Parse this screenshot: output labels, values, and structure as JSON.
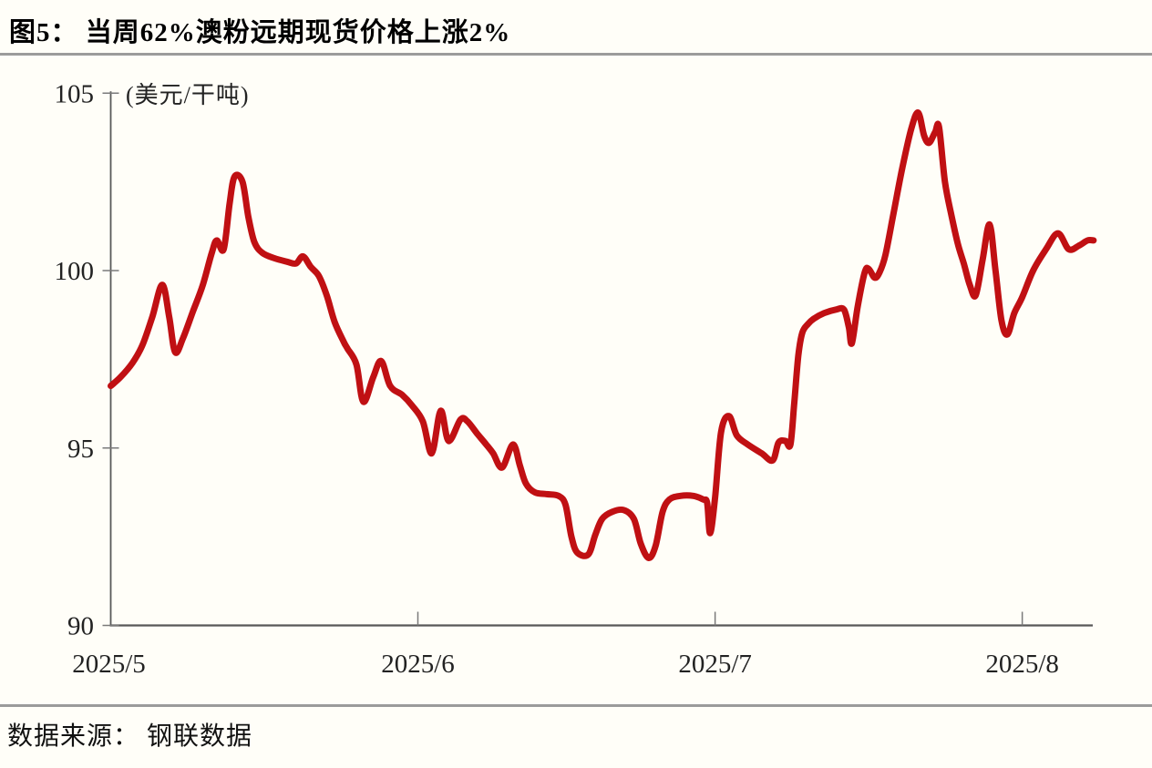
{
  "header": {
    "title": "图5： 当周62%澳粉远期现货价格上涨2%"
  },
  "footer": {
    "source": "数据来源： 钢联数据"
  },
  "chart_data": {
    "type": "line",
    "title": "当周62%澳粉远期现货价格上涨2%",
    "unit_label": "(美元/干吨)",
    "x_axis": {
      "tick_labels": [
        "2025/5",
        "2025/6",
        "2025/7",
        "2025/8"
      ],
      "tick_days": [
        0,
        31,
        61,
        92
      ],
      "x_unit": "days since 2025/5/1",
      "range_days": [
        0,
        99.2
      ]
    },
    "y_axis": {
      "ticks": [
        90,
        95,
        100,
        105
      ],
      "min": 90,
      "max": 105
    },
    "legend": "none",
    "grid": "off",
    "series": [
      {
        "name": "62%澳粉远期现货价格",
        "color": "#c01013",
        "points": [
          [
            0,
            96.75
          ],
          [
            1,
            97.0
          ],
          [
            2.2,
            97.4
          ],
          [
            3.2,
            97.9
          ],
          [
            4.2,
            98.7
          ],
          [
            5.2,
            99.6
          ],
          [
            5.9,
            98.7
          ],
          [
            6.5,
            97.7
          ],
          [
            7.3,
            98.1
          ],
          [
            8.3,
            98.85
          ],
          [
            9.3,
            99.6
          ],
          [
            10.2,
            100.5
          ],
          [
            10.7,
            100.85
          ],
          [
            11.4,
            100.6
          ],
          [
            12.0,
            101.9
          ],
          [
            12.5,
            102.65
          ],
          [
            13.3,
            102.5
          ],
          [
            13.9,
            101.5
          ],
          [
            14.5,
            100.8
          ],
          [
            15.3,
            100.5
          ],
          [
            16.5,
            100.35
          ],
          [
            17.8,
            100.25
          ],
          [
            18.7,
            100.2
          ],
          [
            19.4,
            100.4
          ],
          [
            20.2,
            100.1
          ],
          [
            21.0,
            99.85
          ],
          [
            21.8,
            99.3
          ],
          [
            22.6,
            98.55
          ],
          [
            23.5,
            98.0
          ],
          [
            23.9,
            97.8
          ],
          [
            24.8,
            97.35
          ],
          [
            25.5,
            96.3
          ],
          [
            26.5,
            97.0
          ],
          [
            27.3,
            97.45
          ],
          [
            28.2,
            96.75
          ],
          [
            29.4,
            96.5
          ],
          [
            30.4,
            96.2
          ],
          [
            31.5,
            95.75
          ],
          [
            32.4,
            94.85
          ],
          [
            33.3,
            96.05
          ],
          [
            34.1,
            95.2
          ],
          [
            35.3,
            95.8
          ],
          [
            36.0,
            95.75
          ],
          [
            37.0,
            95.4
          ],
          [
            37.9,
            95.1
          ],
          [
            38.6,
            94.85
          ],
          [
            39.5,
            94.45
          ],
          [
            40.6,
            95.1
          ],
          [
            41.3,
            94.5
          ],
          [
            41.9,
            94.0
          ],
          [
            42.8,
            93.75
          ],
          [
            44.0,
            93.7
          ],
          [
            45.2,
            93.65
          ],
          [
            45.9,
            93.4
          ],
          [
            46.5,
            92.5
          ],
          [
            47.1,
            92.05
          ],
          [
            48.2,
            92.0
          ],
          [
            48.9,
            92.55
          ],
          [
            49.6,
            93.0
          ],
          [
            50.6,
            93.2
          ],
          [
            51.8,
            93.25
          ],
          [
            52.8,
            93.0
          ],
          [
            53.5,
            92.3
          ],
          [
            54.3,
            91.9
          ],
          [
            55.0,
            92.25
          ],
          [
            55.7,
            93.2
          ],
          [
            56.4,
            93.55
          ],
          [
            57.5,
            93.65
          ],
          [
            58.8,
            93.65
          ],
          [
            59.8,
            93.55
          ],
          [
            60.2,
            93.45
          ],
          [
            60.5,
            92.6
          ],
          [
            61.0,
            93.6
          ],
          [
            61.6,
            95.45
          ],
          [
            62.4,
            95.9
          ],
          [
            63.2,
            95.35
          ],
          [
            64.3,
            95.1
          ],
          [
            65.7,
            94.85
          ],
          [
            66.8,
            94.65
          ],
          [
            67.4,
            95.15
          ],
          [
            68.1,
            95.2
          ],
          [
            68.6,
            95.1
          ],
          [
            69.0,
            96.3
          ],
          [
            69.4,
            97.6
          ],
          [
            69.8,
            98.25
          ],
          [
            70.4,
            98.5
          ],
          [
            71.0,
            98.65
          ],
          [
            72.0,
            98.8
          ],
          [
            73.2,
            98.9
          ],
          [
            74.0,
            98.9
          ],
          [
            74.5,
            98.4
          ],
          [
            74.8,
            97.95
          ],
          [
            75.4,
            99.0
          ],
          [
            76.1,
            99.95
          ],
          [
            76.5,
            100.05
          ],
          [
            77.1,
            99.8
          ],
          [
            77.6,
            99.95
          ],
          [
            78.2,
            100.45
          ],
          [
            79.0,
            101.6
          ],
          [
            79.9,
            102.9
          ],
          [
            80.8,
            104.0
          ],
          [
            81.5,
            104.45
          ],
          [
            82.1,
            103.8
          ],
          [
            82.6,
            103.6
          ],
          [
            83.2,
            103.9
          ],
          [
            83.6,
            104.05
          ],
          [
            84.2,
            102.5
          ],
          [
            84.9,
            101.5
          ],
          [
            85.5,
            100.75
          ],
          [
            86.1,
            100.2
          ],
          [
            86.7,
            99.6
          ],
          [
            87.3,
            99.3
          ],
          [
            88.0,
            100.3
          ],
          [
            88.7,
            101.3
          ],
          [
            89.3,
            100.0
          ],
          [
            89.9,
            98.6
          ],
          [
            90.5,
            98.2
          ],
          [
            91.2,
            98.8
          ],
          [
            92.0,
            99.25
          ],
          [
            93.1,
            100.0
          ],
          [
            94.4,
            100.6
          ],
          [
            95.6,
            101.05
          ],
          [
            96.7,
            100.6
          ],
          [
            97.7,
            100.7
          ],
          [
            98.6,
            100.85
          ],
          [
            99.2,
            100.85
          ]
        ]
      }
    ],
    "colors": {
      "line": "#c01013",
      "axis": "#595959",
      "tick": "#7a7a7a",
      "text": "#222222",
      "divider": "#9b9b9b",
      "background": "#fffef8"
    }
  }
}
